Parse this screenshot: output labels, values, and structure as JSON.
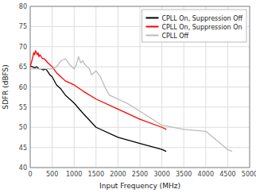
{
  "chart_data": {
    "type": "line",
    "xlabel": "Input Frequency (MHz)",
    "ylabel": "SDFR (dBFS)",
    "xlim": [
      0,
      5000
    ],
    "ylim": [
      40,
      80
    ],
    "xticks": [
      0,
      500,
      1000,
      1500,
      2000,
      2500,
      3000,
      3500,
      4000,
      4500,
      5000
    ],
    "yticks": [
      40,
      45,
      50,
      55,
      60,
      65,
      70,
      75,
      80
    ],
    "grid": true,
    "legend": "upper right",
    "series": [
      {
        "name": "CPLL On, Suppression Off",
        "color": "#000000",
        "x": [
          0,
          50,
          100,
          150,
          200,
          250,
          300,
          350,
          400,
          450,
          500,
          600,
          700,
          800,
          900,
          1000,
          1200,
          1500,
          2000,
          2500,
          3000,
          3100
        ],
        "values": [
          65.2,
          65.0,
          64.8,
          65.0,
          64.5,
          64.5,
          64.2,
          64.5,
          63.8,
          63.0,
          62.5,
          60.5,
          59.5,
          58.0,
          57.0,
          56.0,
          53.5,
          50.0,
          47.5,
          46.0,
          44.5,
          44.0
        ]
      },
      {
        "name": "CPLL On, Suppression On",
        "color": "#ff0000",
        "x": [
          0,
          50,
          80,
          100,
          120,
          140,
          160,
          180,
          200,
          220,
          250,
          280,
          320,
          360,
          400,
          450,
          500,
          600,
          700,
          800,
          900,
          1000,
          1200,
          1500,
          2000,
          2500,
          3000,
          3100
        ],
        "values": [
          65.0,
          67.0,
          68.5,
          68.0,
          69.0,
          68.5,
          68.0,
          68.5,
          67.5,
          68.0,
          67.5,
          67.0,
          67.0,
          66.5,
          66.0,
          65.5,
          65.0,
          63.5,
          62.5,
          61.5,
          61.0,
          60.5,
          59.0,
          57.0,
          54.5,
          52.0,
          50.0,
          49.5
        ]
      },
      {
        "name": "CPLL Off",
        "color": "#bbbbbb",
        "x": [
          0,
          100,
          200,
          300,
          400,
          500,
          600,
          700,
          800,
          900,
          1000,
          1050,
          1100,
          1150,
          1200,
          1250,
          1300,
          1350,
          1400,
          1500,
          1600,
          1700,
          1800,
          1900,
          2000,
          2200,
          2500,
          3000,
          3500,
          4000,
          4500,
          4600
        ],
        "values": [
          64.5,
          64.5,
          64.5,
          64.5,
          64.5,
          64.5,
          65.0,
          66.5,
          67.0,
          65.5,
          64.5,
          65.5,
          67.5,
          66.0,
          66.5,
          65.5,
          65.0,
          64.5,
          63.0,
          64.0,
          62.5,
          60.0,
          58.0,
          57.5,
          57.0,
          56.0,
          54.0,
          50.5,
          49.5,
          49.0,
          44.5,
          44.0
        ]
      }
    ]
  }
}
